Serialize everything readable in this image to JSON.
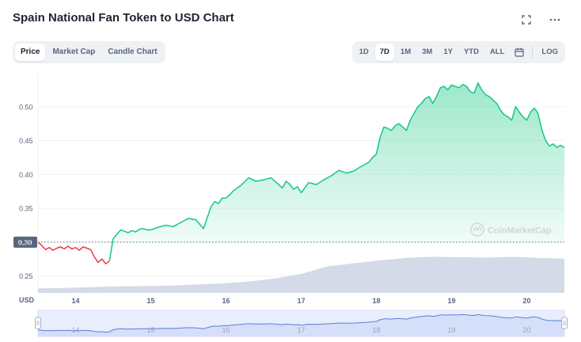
{
  "header": {
    "title": "Spain National Fan Token to USD Chart",
    "fullscreen_icon": "fullscreen-icon",
    "more_icon": "more-icon"
  },
  "tabs": [
    {
      "label": "Price",
      "active": true
    },
    {
      "label": "Market Cap",
      "active": false
    },
    {
      "label": "Candle Chart",
      "active": false
    }
  ],
  "ranges": [
    {
      "label": "1D",
      "active": false
    },
    {
      "label": "7D",
      "active": true
    },
    {
      "label": "1M",
      "active": false
    },
    {
      "label": "3M",
      "active": false
    },
    {
      "label": "1Y",
      "active": false
    },
    {
      "label": "YTD",
      "active": false
    },
    {
      "label": "ALL",
      "active": false
    }
  ],
  "log_label": "LOG",
  "calendar_icon": "calendar-icon",
  "watermark": "CoinMarketCap",
  "colors": {
    "up": "#16c784",
    "down": "#ea3943",
    "volume": "#cfd6e4",
    "navigator_fill": "#e8eefc",
    "navigator_line": "#5b7fd6"
  },
  "chart_data": {
    "type": "line",
    "ylabel": "",
    "y_unit_label": "USD",
    "ylim": [
      0.225,
      0.55
    ],
    "y_ticks": [
      "0.25",
      "0.30",
      "0.35",
      "0.40",
      "0.45",
      "0.50"
    ],
    "x_ticks": [
      "14",
      "15",
      "16",
      "17",
      "18",
      "19",
      "20"
    ],
    "x_tick_values": [
      14,
      15,
      16,
      17,
      18,
      19,
      20
    ],
    "xlim": [
      13.5,
      20.5
    ],
    "baseline": {
      "value": 0.3,
      "label": "0.30"
    },
    "grid": true,
    "series": [
      {
        "x": [
          13.5,
          13.55,
          13.6,
          13.65,
          13.7,
          13.75,
          13.8,
          13.85,
          13.9,
          13.95,
          14.0,
          14.05,
          14.1,
          14.15,
          14.2,
          14.25,
          14.3,
          14.35,
          14.4,
          14.45,
          14.5,
          14.55,
          14.6,
          14.65,
          14.7,
          14.75,
          14.8,
          14.85,
          14.9,
          14.95,
          15.0,
          15.1,
          15.2,
          15.3,
          15.4,
          15.5,
          15.6,
          15.7,
          15.8,
          15.85,
          15.9,
          15.95,
          16.0,
          16.05,
          16.1,
          16.2,
          16.3,
          16.4,
          16.5,
          16.6,
          16.7,
          16.75,
          16.8,
          16.85,
          16.9,
          16.95,
          17.0,
          17.1,
          17.2,
          17.3,
          17.4,
          17.5,
          17.6,
          17.7,
          17.8,
          17.85,
          17.9,
          17.95,
          18.0,
          18.05,
          18.1,
          18.15,
          18.2,
          18.25,
          18.3,
          18.35,
          18.4,
          18.45,
          18.5,
          18.55,
          18.6,
          18.65,
          18.7,
          18.75,
          18.8,
          18.85,
          18.9,
          18.95,
          19.0,
          19.05,
          19.1,
          19.15,
          19.2,
          19.25,
          19.3,
          19.35,
          19.4,
          19.45,
          19.5,
          19.55,
          19.6,
          19.65,
          19.7,
          19.75,
          19.8,
          19.85,
          19.9,
          19.95,
          20.0,
          20.05,
          20.1,
          20.15,
          20.2,
          20.25,
          20.3,
          20.35,
          20.4,
          20.45,
          20.5
        ],
        "y": [
          0.3,
          0.295,
          0.289,
          0.292,
          0.288,
          0.291,
          0.293,
          0.29,
          0.294,
          0.29,
          0.292,
          0.288,
          0.293,
          0.291,
          0.289,
          0.278,
          0.27,
          0.275,
          0.268,
          0.272,
          0.305,
          0.312,
          0.318,
          0.316,
          0.314,
          0.317,
          0.315,
          0.319,
          0.32,
          0.318,
          0.318,
          0.322,
          0.325,
          0.323,
          0.329,
          0.335,
          0.333,
          0.32,
          0.352,
          0.36,
          0.357,
          0.365,
          0.365,
          0.37,
          0.376,
          0.384,
          0.395,
          0.39,
          0.392,
          0.395,
          0.385,
          0.38,
          0.39,
          0.385,
          0.378,
          0.382,
          0.373,
          0.388,
          0.385,
          0.392,
          0.398,
          0.406,
          0.402,
          0.405,
          0.412,
          0.415,
          0.418,
          0.425,
          0.43,
          0.455,
          0.47,
          0.468,
          0.465,
          0.472,
          0.475,
          0.47,
          0.465,
          0.48,
          0.49,
          0.5,
          0.505,
          0.512,
          0.515,
          0.505,
          0.515,
          0.528,
          0.53,
          0.525,
          0.532,
          0.53,
          0.528,
          0.533,
          0.53,
          0.522,
          0.52,
          0.535,
          0.525,
          0.518,
          0.515,
          0.51,
          0.505,
          0.495,
          0.488,
          0.485,
          0.48,
          0.5,
          0.492,
          0.485,
          0.48,
          0.492,
          0.498,
          0.49,
          0.466,
          0.45,
          0.442,
          0.445,
          0.44,
          0.443,
          0.44
        ],
        "down_until_x": 14.45
      }
    ],
    "volume_trend": [
      0.12,
      0.13,
      0.15,
      0.17,
      0.18,
      0.19,
      0.22,
      0.25,
      0.3,
      0.38,
      0.5,
      0.7,
      0.78,
      0.86,
      0.92,
      0.95,
      0.94,
      0.93,
      0.95,
      0.92,
      0.9
    ]
  }
}
